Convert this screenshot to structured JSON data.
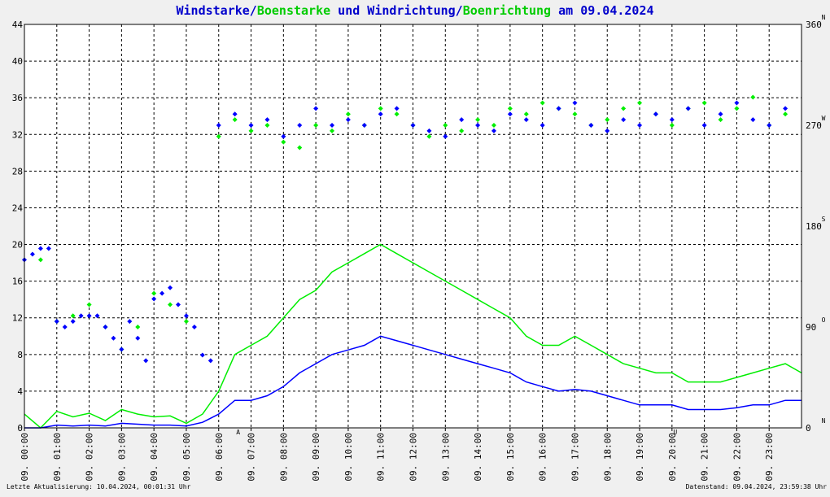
{
  "chart_data": {
    "type": "scatter",
    "title_parts": [
      {
        "text": "Windstarke",
        "color": "#0000cc"
      },
      {
        "text": "/",
        "color": "#0000cc"
      },
      {
        "text": "Boenstarke",
        "color": "#00cc00"
      },
      {
        "text": " und ",
        "color": "#0000cc"
      },
      {
        "text": "Windrichtung",
        "color": "#0000cc"
      },
      {
        "text": "/",
        "color": "#0000cc"
      },
      {
        "text": "Boenrichtung",
        "color": "#00cc00"
      },
      {
        "text": " am 09.04.2024",
        "color": "#0000cc"
      }
    ],
    "y_left": {
      "min": 0,
      "max": 44,
      "ticks": [
        "0",
        "4",
        "8",
        "12",
        "16",
        "20",
        "24",
        "28",
        "32",
        "36",
        "40",
        "44"
      ]
    },
    "y_right": {
      "min": 0,
      "max": 360,
      "ticks": [
        "0",
        "90",
        "180",
        "270",
        "360"
      ],
      "dir_labels": [
        "N",
        "O",
        "S",
        "W",
        "N"
      ]
    },
    "x_ticks": [
      "09. 00:00",
      "09. 01:00",
      "09. 02:00",
      "09. 03:00",
      "09. 04:00",
      "09. 05:00",
      "09. 06:00",
      "09. 07:00",
      "09. 08:00",
      "09. 09:00",
      "09. 10:00",
      "09. 11:00",
      "09. 12:00",
      "09. 13:00",
      "09. 14:00",
      "09. 15:00",
      "09. 16:00",
      "09. 17:00",
      "09. 18:00",
      "09. 19:00",
      "09. 20:00",
      "09. 21:00",
      "09. 22:00",
      "09. 23:00"
    ],
    "x_range_hours": [
      0,
      24
    ],
    "grid": true,
    "colors": {
      "wind": "#0000ff",
      "gust": "#00ee00",
      "grid": "#000000",
      "marker": "#cc0000",
      "background": "#ffffff"
    },
    "markers": [
      {
        "label": "A",
        "hour": 6.6
      },
      {
        "label": "U",
        "hour": 20.1
      }
    ],
    "series": [
      {
        "name": "Windstarke",
        "kind": "line",
        "x_hours": [
          0,
          0.5,
          1,
          1.5,
          2,
          2.5,
          3,
          3.5,
          4,
          4.5,
          5,
          5.5,
          6,
          6.5,
          7,
          7.5,
          8,
          8.5,
          9,
          9.5,
          10,
          10.5,
          11,
          11.5,
          12,
          12.5,
          13,
          13.5,
          14,
          14.5,
          15,
          15.5,
          16,
          16.5,
          17,
          17.5,
          18,
          18.5,
          19,
          19.5,
          20,
          20.5,
          21,
          21.5,
          22,
          22.5,
          23,
          23.5,
          24
        ],
        "values": [
          0,
          0,
          0.3,
          0.2,
          0.3,
          0.2,
          0.5,
          0.4,
          0.3,
          0.3,
          0.2,
          0.6,
          1.5,
          3,
          3,
          3.5,
          4.5,
          6,
          7,
          8,
          8.5,
          9,
          10,
          9.5,
          9,
          8.5,
          8,
          7.5,
          7,
          6.5,
          6,
          5,
          4.5,
          4,
          4.2,
          4,
          3.5,
          3,
          2.5,
          2.5,
          2.5,
          2,
          2,
          2,
          2.2,
          2.5,
          2.5,
          3,
          3
        ]
      },
      {
        "name": "Boenstarke",
        "kind": "line",
        "x_hours": [
          0,
          0.5,
          1,
          1.5,
          2,
          2.5,
          3,
          3.5,
          4,
          4.5,
          5,
          5.5,
          6,
          6.5,
          7,
          7.5,
          8,
          8.5,
          9,
          9.5,
          10,
          10.5,
          11,
          11.5,
          12,
          12.5,
          13,
          13.5,
          14,
          14.5,
          15,
          15.5,
          16,
          16.5,
          17,
          17.5,
          18,
          18.5,
          19,
          19.5,
          20,
          20.5,
          21,
          21.5,
          22,
          22.5,
          23,
          23.5,
          24
        ],
        "values": [
          1.5,
          0,
          1.8,
          1.2,
          1.6,
          0.8,
          2,
          1.5,
          1.2,
          1.3,
          0.5,
          1.5,
          4,
          8,
          9,
          10,
          12,
          14,
          15,
          17,
          18,
          19,
          20,
          19,
          18,
          17,
          16,
          15,
          14,
          13,
          12,
          10,
          9,
          9,
          10,
          9,
          8,
          7,
          6.5,
          6,
          6,
          5,
          5,
          5,
          5.5,
          6,
          6.5,
          7,
          6
        ]
      },
      {
        "name": "Windrichtung",
        "kind": "scatter",
        "x_hours": [
          0,
          0.25,
          0.5,
          0.75,
          1,
          1.25,
          1.5,
          1.75,
          2,
          2.25,
          2.5,
          2.75,
          3,
          3.25,
          3.5,
          3.75,
          4,
          4.25,
          4.5,
          4.75,
          5,
          5.25,
          5.5,
          5.75,
          6,
          6.5,
          7,
          7.5,
          8,
          8.5,
          9,
          9.5,
          10,
          10.5,
          11,
          11.5,
          12,
          12.5,
          13,
          13.5,
          14,
          14.5,
          15,
          15.5,
          16,
          16.5,
          17,
          17.5,
          18,
          18.5,
          19,
          19.5,
          20,
          20.5,
          21,
          21.5,
          22,
          22.5,
          23,
          23.5
        ],
        "values": [
          150,
          155,
          160,
          160,
          95,
          90,
          95,
          100,
          100,
          100,
          90,
          80,
          70,
          95,
          80,
          60,
          115,
          120,
          125,
          110,
          100,
          90,
          65,
          60,
          270,
          280,
          270,
          275,
          260,
          270,
          285,
          270,
          275,
          270,
          280,
          285,
          270,
          265,
          260,
          275,
          270,
          265,
          280,
          275,
          270,
          285,
          290,
          270,
          265,
          275,
          270,
          280,
          275,
          285,
          270,
          280,
          290,
          275,
          270,
          285
        ]
      },
      {
        "name": "Boenrichtung",
        "kind": "scatter",
        "x_hours": [
          0.5,
          1,
          1.5,
          2,
          2.5,
          3,
          3.5,
          4,
          4.5,
          5,
          6,
          6.5,
          7,
          7.5,
          8,
          8.5,
          9,
          9.5,
          10,
          10.5,
          11,
          11.5,
          12,
          12.5,
          13,
          13.5,
          14,
          14.5,
          15,
          15.5,
          16,
          16.5,
          17,
          17.5,
          18,
          18.5,
          19,
          19.5,
          20,
          20.5,
          21,
          21.5,
          22,
          22.5,
          23,
          23.5
        ],
        "values": [
          150,
          95,
          100,
          110,
          90,
          70,
          90,
          120,
          110,
          95,
          260,
          275,
          265,
          270,
          255,
          250,
          270,
          265,
          280,
          270,
          285,
          280,
          270,
          260,
          270,
          265,
          275,
          270,
          285,
          280,
          290,
          285,
          280,
          270,
          275,
          285,
          290,
          280,
          270,
          285,
          290,
          275,
          285,
          295,
          270,
          280
        ]
      }
    ]
  },
  "footer": {
    "left": "Letzte Aktualisierung: 10.04.2024, 00:01:31 Uhr",
    "right": "Datenstand: 09.04.2024, 23:59:38 Uhr"
  }
}
